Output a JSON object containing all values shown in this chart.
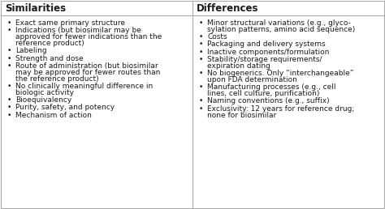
{
  "left_header": "Similarities",
  "right_header": "Differences",
  "left_items": [
    [
      "Exact same primary structure"
    ],
    [
      "Indications (but biosimilar may be",
      "approved for fewer indications than the",
      "reference product)"
    ],
    [
      "Labeling"
    ],
    [
      "Strength and dose"
    ],
    [
      "Route of administration (but biosimilar",
      "may be approved for fewer routes than",
      "the reference product)"
    ],
    [
      "No clinically meaningful difference in",
      "biologic activity"
    ],
    [
      "Bioequivalency"
    ],
    [
      "Purity, safety, and potency"
    ],
    [
      "Mechanism of action"
    ]
  ],
  "right_items": [
    [
      "Minor structural variations (e.g., glyco-",
      "sylation patterns, amino acid sequence)"
    ],
    [
      "Costs"
    ],
    [
      "Packaging and delivery systems"
    ],
    [
      "Inactive components/formulation"
    ],
    [
      "Stability/storage requirements/",
      "expiration dating"
    ],
    [
      "No biogenerics. Only “interchangeable”",
      "upon FDA determination"
    ],
    [
      "Manufacturing processes (e.g., cell",
      "lines, cell culture, purification)"
    ],
    [
      "Naming conventions (e.g., suffix)"
    ],
    [
      "Exclusivity: 12 years for reference drug;",
      "none for biosimilar"
    ]
  ],
  "bg_color": "#ffffff",
  "header_bg": "#ffffff",
  "border_color": "#aaaaaa",
  "text_color": "#1a1a1a",
  "header_font_size": 8.5,
  "body_font_size": 6.5,
  "bullet": "•"
}
